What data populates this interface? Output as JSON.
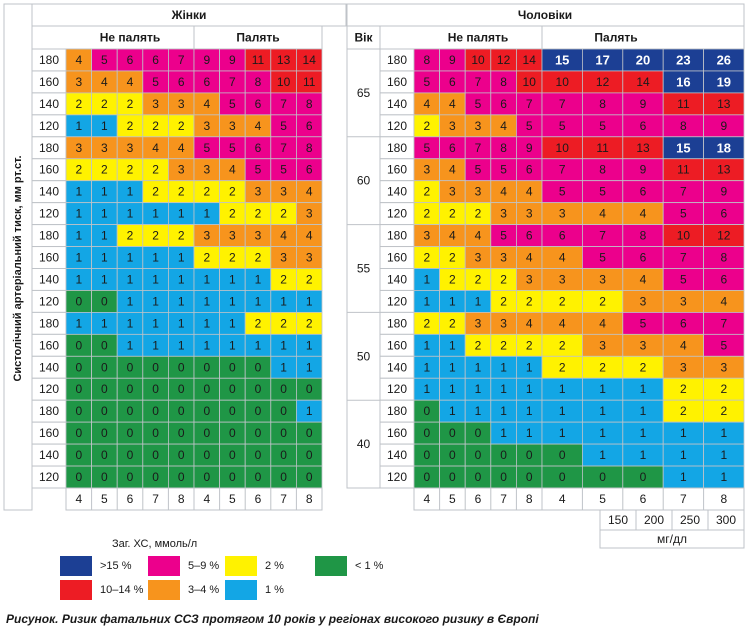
{
  "headers": {
    "women": "Жінки",
    "men": "Чоловіки",
    "nonsmoking": "Не палять",
    "smoking": "Палять",
    "age": "Вік",
    "y_axis": "Систолічний артеріальний тиск, мм рт.ст."
  },
  "chart_data": {
    "type": "heatmap",
    "title": "",
    "ylabel": "Систолічний артеріальний тиск, мм рт.ст.",
    "xlabel": "Заг. ХС, ммоль/л",
    "age_groups": [
      "65",
      "60",
      "55",
      "50",
      "40"
    ],
    "bp_levels": [
      "180",
      "160",
      "140",
      "120"
    ],
    "cholesterol_mmol": [
      "4",
      "5",
      "6",
      "7",
      "8"
    ],
    "cholesterol_mgdl": [
      "150",
      "200",
      "250",
      "300"
    ],
    "mgdl_unit": "мг/дл",
    "women": {
      "nonsmoking": [
        [
          [
            4,
            5,
            6,
            6,
            7
          ],
          [
            3,
            4,
            4,
            5,
            6
          ],
          [
            2,
            2,
            2,
            3,
            3
          ],
          [
            1,
            1,
            2,
            2,
            2
          ]
        ],
        [
          [
            3,
            3,
            3,
            4,
            4
          ],
          [
            2,
            2,
            2,
            2,
            3
          ],
          [
            1,
            1,
            1,
            2,
            2
          ],
          [
            1,
            1,
            1,
            1,
            1
          ]
        ],
        [
          [
            1,
            1,
            2,
            2,
            2
          ],
          [
            1,
            1,
            1,
            1,
            1
          ],
          [
            1,
            1,
            1,
            1,
            1
          ],
          [
            0,
            0,
            1,
            1,
            1
          ]
        ],
        [
          [
            1,
            1,
            1,
            1,
            1
          ],
          [
            0,
            0,
            1,
            1,
            1
          ],
          [
            0,
            0,
            0,
            0,
            0
          ],
          [
            0,
            0,
            0,
            0,
            0
          ]
        ],
        [
          [
            0,
            0,
            0,
            0,
            0
          ],
          [
            0,
            0,
            0,
            0,
            0
          ],
          [
            0,
            0,
            0,
            0,
            0
          ],
          [
            0,
            0,
            0,
            0,
            0
          ]
        ]
      ],
      "smoking": [
        [
          [
            9,
            9,
            11,
            13,
            14
          ],
          [
            6,
            7,
            8,
            10,
            11
          ],
          [
            4,
            5,
            6,
            7,
            8
          ],
          [
            3,
            3,
            4,
            5,
            6
          ]
        ],
        [
          [
            5,
            5,
            6,
            7,
            8
          ],
          [
            3,
            4,
            5,
            5,
            6
          ],
          [
            2,
            2,
            3,
            3,
            4
          ],
          [
            1,
            2,
            2,
            2,
            3
          ]
        ],
        [
          [
            3,
            3,
            3,
            4,
            4
          ],
          [
            2,
            2,
            2,
            3,
            3
          ],
          [
            1,
            1,
            1,
            2,
            2
          ],
          [
            1,
            1,
            1,
            1,
            1
          ]
        ],
        [
          [
            1,
            1,
            2,
            2,
            2
          ],
          [
            1,
            1,
            1,
            1,
            1
          ],
          [
            0,
            0,
            0,
            1,
            1
          ],
          [
            0,
            0,
            0,
            0,
            0
          ]
        ],
        [
          [
            0,
            0,
            0,
            0,
            1
          ],
          [
            0,
            0,
            0,
            0,
            0
          ],
          [
            0,
            0,
            0,
            0,
            0
          ],
          [
            0,
            0,
            0,
            0,
            0
          ]
        ]
      ]
    },
    "men": {
      "nonsmoking": [
        [
          [
            8,
            9,
            10,
            12,
            14
          ],
          [
            5,
            6,
            7,
            8,
            10
          ],
          [
            4,
            4,
            5,
            6,
            7
          ],
          [
            2,
            3,
            3,
            4,
            5
          ]
        ],
        [
          [
            5,
            6,
            7,
            8,
            9
          ],
          [
            3,
            4,
            5,
            5,
            6
          ],
          [
            2,
            3,
            3,
            4,
            4
          ],
          [
            2,
            2,
            2,
            3,
            3
          ]
        ],
        [
          [
            3,
            4,
            4,
            5,
            6
          ],
          [
            2,
            2,
            3,
            3,
            4
          ],
          [
            1,
            2,
            2,
            2,
            3
          ],
          [
            1,
            1,
            1,
            2,
            2
          ]
        ],
        [
          [
            2,
            2,
            3,
            3,
            4
          ],
          [
            1,
            1,
            2,
            2,
            2
          ],
          [
            1,
            1,
            1,
            1,
            1
          ],
          [
            1,
            1,
            1,
            1,
            1
          ]
        ],
        [
          [
            0,
            1,
            1,
            1,
            1
          ],
          [
            0,
            0,
            0,
            1,
            1
          ],
          [
            0,
            0,
            0,
            0,
            0
          ],
          [
            0,
            0,
            0,
            0,
            0
          ]
        ]
      ],
      "smoking": [
        [
          [
            15,
            17,
            20,
            23,
            26
          ],
          [
            10,
            12,
            14,
            16,
            19
          ],
          [
            7,
            8,
            9,
            11,
            13
          ],
          [
            5,
            5,
            6,
            8,
            9
          ]
        ],
        [
          [
            10,
            11,
            13,
            15,
            18
          ],
          [
            7,
            8,
            9,
            11,
            13
          ],
          [
            5,
            5,
            6,
            7,
            9
          ],
          [
            3,
            4,
            4,
            5,
            6
          ]
        ],
        [
          [
            6,
            7,
            8,
            10,
            12
          ],
          [
            4,
            5,
            6,
            7,
            8
          ],
          [
            3,
            3,
            4,
            5,
            6
          ],
          [
            2,
            2,
            3,
            3,
            4
          ]
        ],
        [
          [
            4,
            4,
            5,
            6,
            7
          ],
          [
            2,
            3,
            3,
            4,
            5
          ],
          [
            2,
            2,
            2,
            3,
            3
          ],
          [
            1,
            1,
            1,
            2,
            2
          ]
        ],
        [
          [
            1,
            1,
            1,
            2,
            2
          ],
          [
            1,
            1,
            1,
            1,
            1
          ],
          [
            0,
            1,
            1,
            1,
            1
          ],
          [
            0,
            0,
            0,
            1,
            1
          ]
        ]
      ]
    },
    "risk_colors": {
      "lt1": "#1f9646",
      "r1": "#13a6e5",
      "r2": "#fff200",
      "r3_4": "#f7941d",
      "r5_9": "#ec008c",
      "r10_14": "#ed1c24",
      "gt15": "#1c3f94"
    }
  },
  "legend": {
    "title": "Заг. ХС, ммоль/л",
    "items": [
      {
        "label": ">15 %",
        "color": "#1c3f94"
      },
      {
        "label": "10–14 %",
        "color": "#ed1c24"
      },
      {
        "label": "5–9 %",
        "color": "#ec008c"
      },
      {
        "label": "3–4 %",
        "color": "#f7941d"
      },
      {
        "label": "2 %",
        "color": "#fff200"
      },
      {
        "label": "1 %",
        "color": "#13a6e5"
      },
      {
        "label": "< 1 %",
        "color": "#1f9646"
      }
    ]
  },
  "caption": "Рисунок. Ризик фатальних ССЗ протягом 10 років у регіонах високого ризику в Європі"
}
